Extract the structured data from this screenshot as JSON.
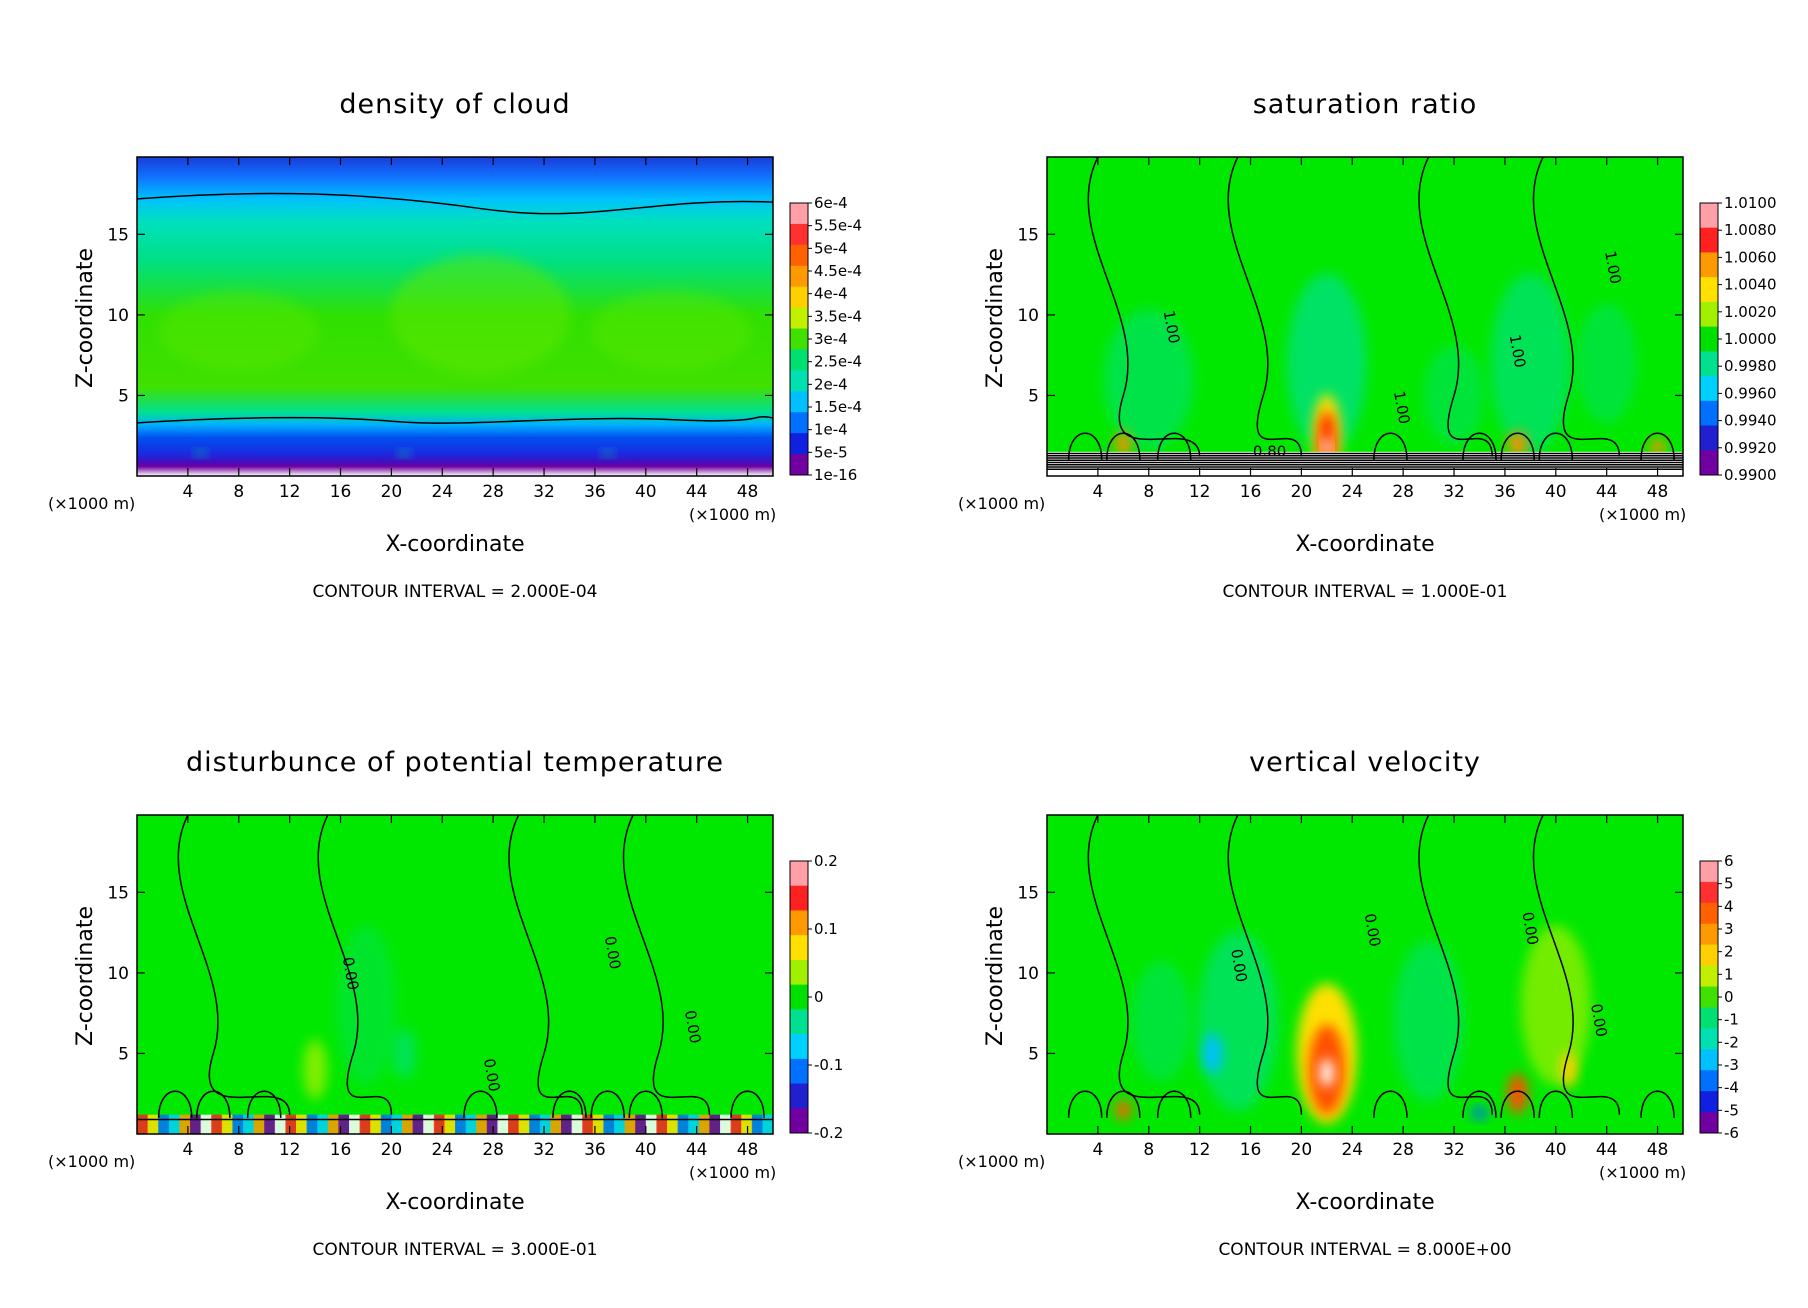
{
  "chart_data": [
    {
      "type": "heatmap",
      "title": "density of cloud",
      "xlabel": "X-coordinate",
      "ylabel": "Z-coordinate",
      "x_unit": "(×1000 m)",
      "xlim": [
        0,
        50
      ],
      "ylim": [
        0,
        19.8
      ],
      "x_ticks": [
        4,
        8,
        12,
        16,
        20,
        24,
        28,
        32,
        36,
        40,
        44,
        48
      ],
      "y_ticks": [
        5,
        10,
        15
      ],
      "contour_interval": "CONTOUR INTERVAL = 2.000E-04",
      "colorbar": {
        "labels": [
          "6e-4",
          "5.5e-4",
          "5e-4",
          "4.5e-4",
          "4e-4",
          "3.5e-4",
          "3e-4",
          "2.5e-4",
          "2e-4",
          "1.5e-4",
          "1e-4",
          "5e-5",
          "1e-16"
        ],
        "colors": [
          "#ffa0a8",
          "#ff3030",
          "#ff6000",
          "#ff9900",
          "#ffd000",
          "#c0f000",
          "#40e000",
          "#00e070",
          "#00e0b0",
          "#00c0ff",
          "#0070ff",
          "#1020e0",
          "#7000a0"
        ]
      },
      "field": "cloud",
      "contour_labels": []
    },
    {
      "type": "heatmap",
      "title": "saturation ratio",
      "xlabel": "X-coordinate",
      "ylabel": "Z-coordinate",
      "x_unit": "(×1000 m)",
      "xlim": [
        0,
        50
      ],
      "ylim": [
        0,
        19.8
      ],
      "x_ticks": [
        4,
        8,
        12,
        16,
        20,
        24,
        28,
        32,
        36,
        40,
        44,
        48
      ],
      "y_ticks": [
        5,
        10,
        15
      ],
      "contour_interval": "CONTOUR INTERVAL = 1.000E-01",
      "colorbar": {
        "labels": [
          "1.0100",
          "1.0080",
          "1.0060",
          "1.0040",
          "1.0020",
          "1.0000",
          "0.9980",
          "0.9960",
          "0.9940",
          "0.9920",
          "0.9900"
        ],
        "colors": [
          "#ffa0a8",
          "#ff2020",
          "#ff9900",
          "#ffe000",
          "#a0f000",
          "#00e000",
          "#00e090",
          "#00d0ff",
          "#0070ff",
          "#2020d0",
          "#7000a0"
        ]
      },
      "field": "sat",
      "contour_labels": [
        {
          "text": "1.00",
          "x": 9.4,
          "z": 9.2
        },
        {
          "text": "1.00",
          "x": 27.5,
          "z": 4.2
        },
        {
          "text": "1.00",
          "x": 36.6,
          "z": 7.7
        },
        {
          "text": "1.00",
          "x": 44.1,
          "z": 12.9
        },
        {
          "text": "0.80",
          "x": 17.5,
          "z": 1.2
        }
      ]
    },
    {
      "type": "heatmap",
      "title": "disturbunce of potential temperature",
      "xlabel": "X-coordinate",
      "ylabel": "Z-coordinate",
      "x_unit": "(×1000 m)",
      "xlim": [
        0,
        50
      ],
      "ylim": [
        0,
        19.8
      ],
      "x_ticks": [
        4,
        8,
        12,
        16,
        20,
        24,
        28,
        32,
        36,
        40,
        44,
        48
      ],
      "y_ticks": [
        5,
        10,
        15
      ],
      "contour_interval": "CONTOUR INTERVAL = 3.000E-01",
      "colorbar": {
        "labels": [
          "0.2",
          "0.1",
          "0",
          "-0.1",
          "-0.2"
        ],
        "colors": [
          "#ffa0a8",
          "#ff2020",
          "#ff9900",
          "#ffe000",
          "#a0f000",
          "#00e000",
          "#00e090",
          "#00d0ff",
          "#0070ff",
          "#2020d0",
          "#7000a0"
        ]
      },
      "field": "theta",
      "contour_labels": [
        {
          "text": "0.00",
          "x": 16.4,
          "z": 9.9
        },
        {
          "text": "0.00",
          "x": 27.5,
          "z": 3.6
        },
        {
          "text": "0.00",
          "x": 37.0,
          "z": 11.2
        },
        {
          "text": "0.00",
          "x": 43.3,
          "z": 6.6
        }
      ]
    },
    {
      "type": "heatmap",
      "title": "vertical velocity",
      "xlabel": "X-coordinate",
      "ylabel": "Z-coordinate",
      "x_unit": "(×1000 m)",
      "xlim": [
        0,
        50
      ],
      "ylim": [
        0,
        19.8
      ],
      "x_ticks": [
        4,
        8,
        12,
        16,
        20,
        24,
        28,
        32,
        36,
        40,
        44,
        48
      ],
      "y_ticks": [
        5,
        10,
        15
      ],
      "contour_interval": "CONTOUR INTERVAL = 8.000E+00",
      "colorbar": {
        "labels": [
          "6",
          "5",
          "4",
          "3",
          "2",
          "1",
          "0",
          "-1",
          "-2",
          "-3",
          "-4",
          "-5",
          "-6"
        ],
        "colors": [
          "#ffa0a8",
          "#ff3030",
          "#ff6000",
          "#ff9900",
          "#ffd000",
          "#c0f000",
          "#40e000",
          "#00e070",
          "#00e0b0",
          "#00c0ff",
          "#0070ff",
          "#1020e0",
          "#7000a0"
        ]
      },
      "field": "w",
      "contour_labels": [
        {
          "text": "0.00",
          "x": 25.2,
          "z": 12.6
        },
        {
          "text": "0.00",
          "x": 14.7,
          "z": 10.4
        },
        {
          "text": "0.00",
          "x": 37.6,
          "z": 12.7
        },
        {
          "text": "0.00",
          "x": 43.0,
          "z": 7.0
        }
      ]
    }
  ]
}
